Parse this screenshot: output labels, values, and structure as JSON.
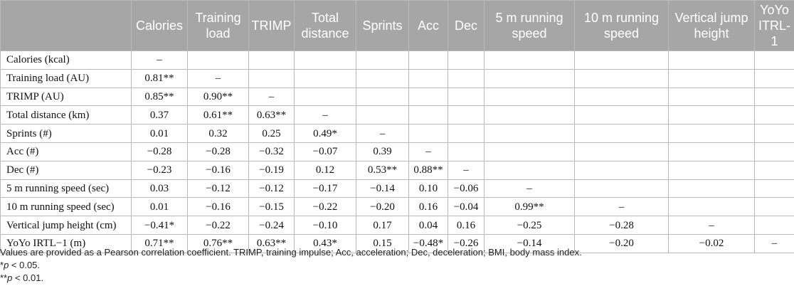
{
  "table": {
    "columns": [
      "",
      "Calories",
      "Training load",
      "TRIMP",
      "Total distance",
      "Sprints",
      "Acc",
      "Dec",
      "5 m running speed",
      "10 m running speed",
      "Vertical jump height",
      "YoYo ITRL-1"
    ],
    "rows": [
      [
        "Calories (kcal)",
        "–",
        "",
        "",
        "",
        "",
        "",
        "",
        "",
        "",
        "",
        ""
      ],
      [
        "Training load (AU)",
        "0.81**",
        "–",
        "",
        "",
        "",
        "",
        "",
        "",
        "",
        "",
        ""
      ],
      [
        "TRIMP (AU)",
        "0.85**",
        "0.90**",
        "–",
        "",
        "",
        "",
        "",
        "",
        "",
        "",
        ""
      ],
      [
        "Total distance (km)",
        "0.37",
        "0.61**",
        "0.63**",
        "–",
        "",
        "",
        "",
        "",
        "",
        "",
        ""
      ],
      [
        "Sprints (#)",
        "0.01",
        "0.32",
        "0.25",
        "0.49*",
        "–",
        "",
        "",
        "",
        "",
        "",
        ""
      ],
      [
        "Acc (#)",
        "−0.28",
        "−0.28",
        "−0.32",
        "−0.07",
        "0.39",
        "–",
        "",
        "",
        "",
        "",
        ""
      ],
      [
        "Dec (#)",
        "−0.23",
        "−0.16",
        "−0.19",
        "0.12",
        "0.53**",
        "0.88**",
        "–",
        "",
        "",
        "",
        ""
      ],
      [
        "5 m running speed (sec)",
        "0.03",
        "−0.12",
        "−0.12",
        "−0.17",
        "−0.14",
        "0.10",
        "−0.06",
        "–",
        "",
        "",
        ""
      ],
      [
        "10 m running speed (sec)",
        "0.01",
        "−0.16",
        "−0.15",
        "−0.22",
        "−0.20",
        "0.16",
        "−0.04",
        "0.99**",
        "–",
        "",
        ""
      ],
      [
        "Vertical jump height (cm)",
        "−0.41*",
        "−0.22",
        "−0.24",
        "−0.10",
        "0.17",
        "0.04",
        "0.16",
        "−0.25",
        "−0.28",
        "–",
        ""
      ],
      [
        "YoYo IRTL−1 (m)",
        "0.71**",
        "0.76**",
        "0.63**",
        "0.43*",
        "0.15",
        "−0.48*",
        "−0.26",
        "−0.14",
        "−0.20",
        "−0.02",
        "–"
      ]
    ]
  },
  "notes": {
    "line1": "Values are provided as a Pearson correlation coefficient. TRIMP, training impulse; Acc, acceleration; Dec, deceleration; BMI, body mass index.",
    "line2_prefix": "*",
    "line2_p": "p",
    "line2_rest": " < 0.05.",
    "line3_prefix": "**",
    "line3_p": "p",
    "line3_rest": " < 0.01."
  }
}
